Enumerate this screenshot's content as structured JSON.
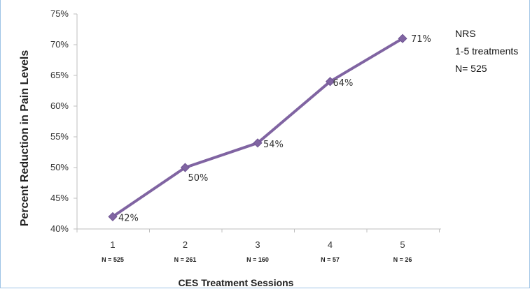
{
  "chart_data": {
    "type": "line",
    "categories": [
      "1",
      "2",
      "3",
      "4",
      "5"
    ],
    "sample_sizes": [
      "N = 525",
      "N = 261",
      "N = 160",
      "N = 57",
      "N = 26"
    ],
    "values": [
      42,
      50,
      54,
      64,
      71
    ],
    "data_labels": [
      "42%",
      "50%",
      "54%",
      "64%",
      "71%"
    ],
    "ylim": [
      40,
      75
    ],
    "y_ticks": [
      "40%",
      "45%",
      "50%",
      "55%",
      "60%",
      "65%",
      "70%",
      "75%"
    ],
    "xlabel": "CES Treatment Sessions",
    "ylabel": "Percent Reduction in Pain Levels",
    "grid": false,
    "series_color": "#8064a2",
    "legend": "none"
  },
  "annotation": {
    "lines": [
      "NRS",
      "1-5 treatments",
      "N= 525"
    ]
  }
}
